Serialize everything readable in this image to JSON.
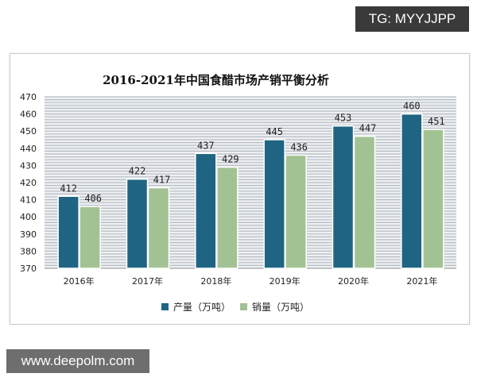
{
  "watermarks": {
    "top": "TG: MYYJJPP",
    "bottom": "www.deepolm.com"
  },
  "chart_data": {
    "type": "bar",
    "title": "2016-2021年中国食醋市场产销平衡分析",
    "categories": [
      "2016年",
      "2017年",
      "2018年",
      "2019年",
      "2020年",
      "2021年"
    ],
    "series": [
      {
        "name": "产量（万吨）",
        "values": [
          412,
          422,
          437,
          445,
          453,
          460
        ],
        "color": "#1f6583"
      },
      {
        "name": "销量（万吨）",
        "values": [
          406,
          417,
          429,
          436,
          447,
          451
        ],
        "color": "#a3c293"
      }
    ],
    "ylim": [
      370,
      470
    ],
    "yticks": [
      370,
      380,
      390,
      400,
      410,
      420,
      430,
      440,
      450,
      460,
      470
    ],
    "grid": true,
    "legend": "bottom",
    "xlabel": "",
    "ylabel": ""
  }
}
